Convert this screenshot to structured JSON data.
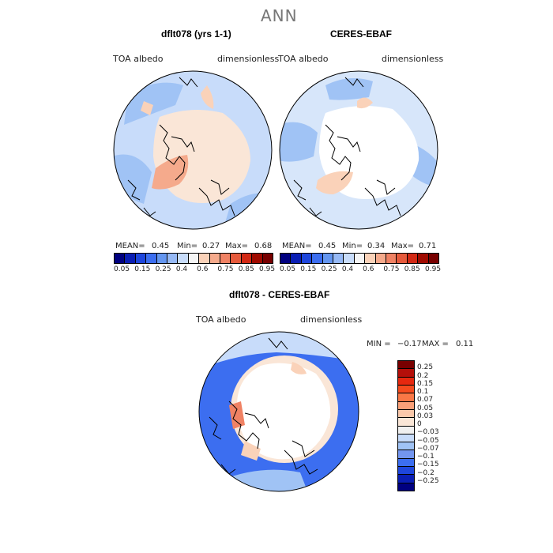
{
  "page": {
    "title": "ANN"
  },
  "panels": [
    {
      "title": "dflt078 (yrs 1-1)",
      "variable": "TOA albedo",
      "units": "dimensionless",
      "mean_label": "MEAN=",
      "mean": "0.45",
      "min_label": "Min=",
      "min": "0.27",
      "max_label": "Max=",
      "max": "0.68"
    },
    {
      "title": "CERES-EBAF",
      "variable": "TOA albedo",
      "units": "dimensionless",
      "mean_label": "MEAN=",
      "mean": "0.45",
      "min_label": "Min=",
      "min": "0.34",
      "max_label": "Max=",
      "max": "0.71"
    },
    {
      "title": "dflt078 - CERES-EBAF",
      "variable": "TOA albedo",
      "units": "dimensionless",
      "min_label": "MIN =",
      "min": "−0.17",
      "max_label": "MAX =",
      "max": "0.11"
    }
  ],
  "colorbar_abs": {
    "colors": [
      "#000080",
      "#0a1eb4",
      "#1e46dc",
      "#3c6ef0",
      "#6496f0",
      "#96b9f5",
      "#c8dcfa",
      "#f5f5f5",
      "#fad2b9",
      "#f5aa8c",
      "#f08264",
      "#e65a3c",
      "#d22814",
      "#a00a00",
      "#780000"
    ],
    "ticks": [
      "0.05",
      "0.15",
      "0.25",
      "0.4",
      "0.6",
      "0.75",
      "0.85",
      "0.95"
    ]
  },
  "colorbar_diff": {
    "colors": [
      "#780000",
      "#b40f0a",
      "#e6280f",
      "#f54b1e",
      "#fa7846",
      "#faa078",
      "#fac8aa",
      "#fae6d7",
      "#f0f0f0",
      "#c8dcfa",
      "#a0c3f5",
      "#7396f0",
      "#3c6ef0",
      "#1e46dc",
      "#0a1eb4",
      "#000080"
    ],
    "labels": [
      "0.25",
      "0.2",
      "0.15",
      "0.1",
      "0.07",
      "0.05",
      "0.03",
      "0",
      "−0.03",
      "−0.05",
      "−0.07",
      "−0.1",
      "−0.15",
      "−0.2",
      "−0.25"
    ]
  },
  "maps": {
    "ocean_model": "#c8dcfa",
    "ocean_ceres": "#d7e6fa",
    "arctic_model": "#fae6d7",
    "arctic_ceres": "#ffffff",
    "diff_ocean": "#3c6ef0",
    "diff_arctic": "#ffffff",
    "diff_ring": "#fae6d7"
  }
}
